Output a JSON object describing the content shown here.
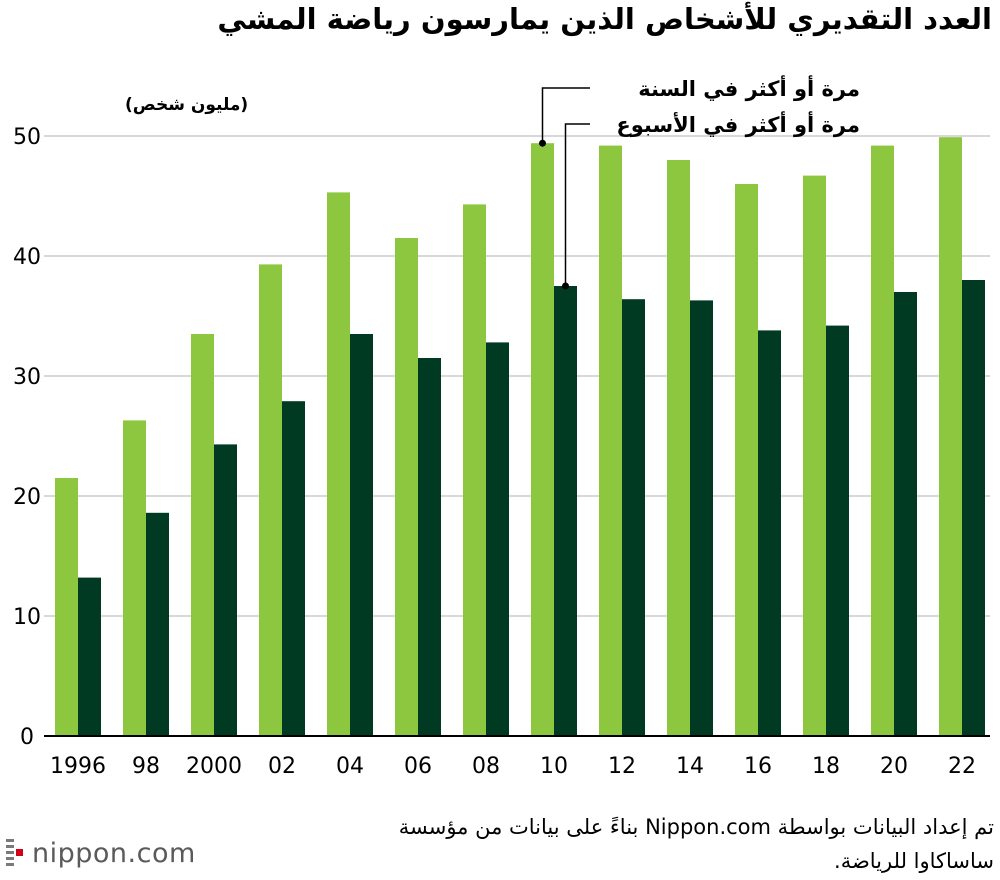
{
  "title": "العدد التقديري للأشخاص الذين يمارسون رياضة المشي",
  "unit_label": "(مليون شخص)",
  "source_note": "تم إعداد البيانات بواسطة Nippon.com بناءً على بيانات من مؤسسة ساساكاوا للرياضة.",
  "logo_text": "nippon.com",
  "colors": {
    "annual": "#8dc63f",
    "weekly": "#003a22",
    "grid": "#cccccc",
    "axis": "#000000"
  },
  "chart_data": {
    "type": "bar",
    "title": "العدد التقديري للأشخاص الذين يمارسون رياضة المشي",
    "xlabel": "",
    "ylabel": "(مليون شخص)",
    "ylim": [
      0,
      50
    ],
    "yticks": [
      0,
      10,
      20,
      30,
      40,
      50
    ],
    "grid": true,
    "categories": [
      "1996",
      "98",
      "2000",
      "02",
      "04",
      "06",
      "08",
      "10",
      "12",
      "14",
      "16",
      "18",
      "20",
      "22"
    ],
    "series": [
      {
        "name": "مرة أو أكثر في السنة",
        "color": "#8dc63f",
        "values": [
          21.5,
          26.3,
          33.5,
          39.3,
          45.3,
          41.5,
          44.3,
          49.4,
          49.2,
          48.0,
          46.0,
          46.7,
          49.2,
          49.9
        ]
      },
      {
        "name": "مرة أو أكثر في الأسبوع",
        "color": "#003a22",
        "values": [
          13.2,
          18.6,
          24.3,
          27.9,
          33.5,
          31.5,
          32.8,
          37.5,
          36.4,
          36.3,
          33.8,
          34.2,
          37.0,
          38.0
        ]
      }
    ],
    "annotations": [
      {
        "series": 0,
        "category": "10",
        "label": "مرة أو أكثر في السنة"
      },
      {
        "series": 1,
        "category": "10",
        "label": "مرة أو أكثر في الأسبوع"
      }
    ]
  }
}
